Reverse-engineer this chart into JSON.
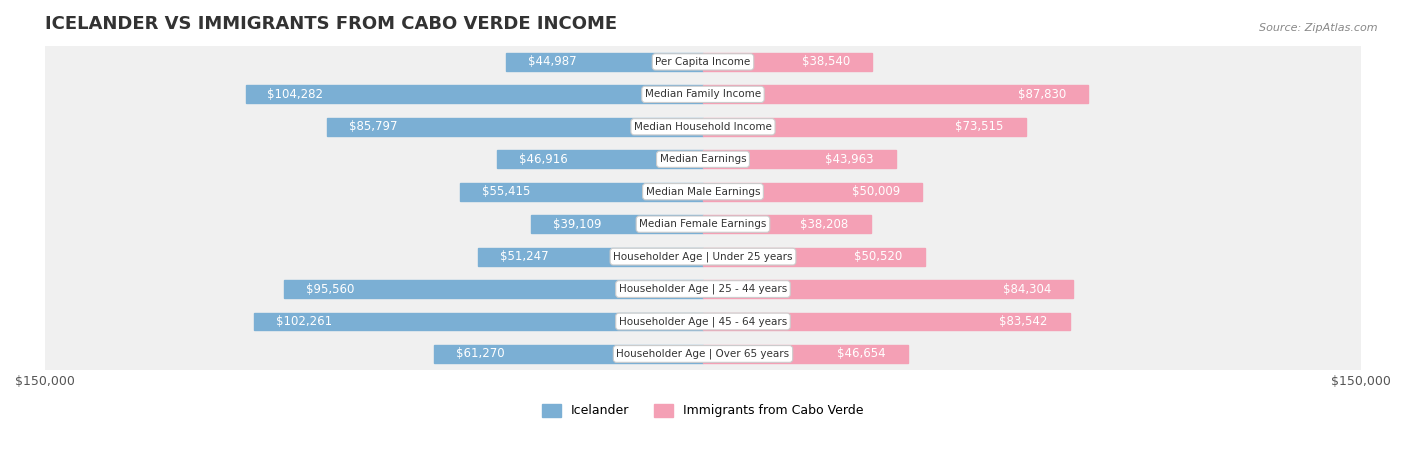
{
  "title": "ICELANDER VS IMMIGRANTS FROM CABO VERDE INCOME",
  "source": "Source: ZipAtlas.com",
  "categories": [
    "Per Capita Income",
    "Median Family Income",
    "Median Household Income",
    "Median Earnings",
    "Median Male Earnings",
    "Median Female Earnings",
    "Householder Age | Under 25 years",
    "Householder Age | 25 - 44 years",
    "Householder Age | 45 - 64 years",
    "Householder Age | Over 65 years"
  ],
  "icelander_values": [
    44987,
    104282,
    85797,
    46916,
    55415,
    39109,
    51247,
    95560,
    102261,
    61270
  ],
  "caboverde_values": [
    38540,
    87830,
    73515,
    43963,
    50009,
    38208,
    50520,
    84304,
    83542,
    46654
  ],
  "icelander_labels": [
    "$44,987",
    "$104,282",
    "$85,797",
    "$46,916",
    "$55,415",
    "$39,109",
    "$51,247",
    "$95,560",
    "$102,261",
    "$61,270"
  ],
  "caboverde_labels": [
    "$38,540",
    "$87,830",
    "$73,515",
    "$43,963",
    "$50,009",
    "$38,208",
    "$50,520",
    "$84,304",
    "$83,542",
    "$46,654"
  ],
  "icelander_color": "#7bafd4",
  "caboverde_color": "#f4a0b5",
  "icelander_color_dark": "#5b9ec9",
  "caboverde_color_dark": "#f08098",
  "max_value": 150000,
  "background_color": "#ffffff",
  "row_bg_color": "#f0f0f0",
  "title_fontsize": 13,
  "label_fontsize": 8.5,
  "legend_icelander": "Icelander",
  "legend_caboverde": "Immigrants from Cabo Verde",
  "axis_label_left": "$150,000",
  "axis_label_right": "$150,000"
}
